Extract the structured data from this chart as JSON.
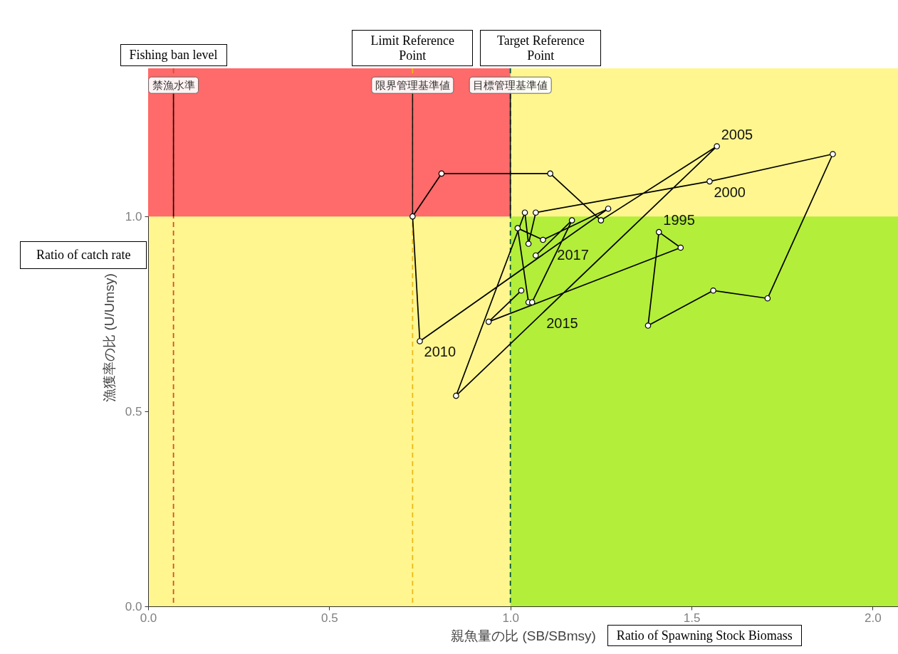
{
  "chart_data": {
    "type": "line",
    "xlabel": "親魚量の比 (SB/SBmsy)",
    "ylabel": "漁獲率の比 (U/Umsy)",
    "x": [
      1.03,
      0.94,
      1.47,
      1.41,
      1.38,
      1.56,
      1.71,
      1.89,
      1.55,
      1.07,
      1.05,
      1.04,
      0.85,
      1.57,
      1.25,
      1.11,
      0.81,
      0.73,
      0.75,
      1.27,
      1.09,
      1.02,
      1.05,
      1.06,
      1.17,
      1.07
    ],
    "series": [
      {
        "color": "#000000",
        "values": [
          0.81,
          0.73,
          0.92,
          0.96,
          0.72,
          0.81,
          0.79,
          1.16,
          1.09,
          1.01,
          0.93,
          1.01,
          0.54,
          1.18,
          0.99,
          1.11,
          1.11,
          1.0,
          0.68,
          1.02,
          0.94,
          0.97,
          0.78,
          0.78,
          0.99,
          0.9
        ]
      }
    ],
    "marker": "circle",
    "xlim": [
      0,
      2.07
    ],
    "xticks": [
      {
        "value": 0,
        "label": "0.0"
      },
      {
        "value": 0.5,
        "label": "0.5"
      },
      {
        "value": 1,
        "label": "1.0"
      },
      {
        "value": 1.5,
        "label": "1.5"
      },
      {
        "value": 2,
        "label": "2.0"
      }
    ],
    "ylim": [
      0,
      1.38
    ],
    "yticks": [
      {
        "value": 0,
        "label": "0.0"
      },
      {
        "value": 0.5,
        "label": "0.5"
      },
      {
        "value": 1,
        "label": "1.0"
      }
    ],
    "ref_lines": [
      {
        "axis": "x",
        "value": 0.07,
        "label": "禁漁水準",
        "color": "#db4c2c",
        "line_style": "dashed"
      },
      {
        "axis": "x",
        "value": 0.73,
        "label": "限界管理基準値",
        "color": "#edb918",
        "line_style": "dashed"
      },
      {
        "axis": "x",
        "value": 1,
        "label": "目標管理基準値",
        "color": "#00533e",
        "line_style": "dashed"
      }
    ],
    "bands": [
      {
        "axis": "x",
        "from": 0,
        "to": 1,
        "color": "#ff6a6a"
      },
      {
        "axis": "x",
        "from": 1,
        "to": 2.07,
        "color": "#b3ee3a"
      }
    ],
    "annotations": [
      {
        "text": "1995",
        "x": 1.41,
        "y": 0.96
      },
      {
        "text": "2000",
        "x": 1.55,
        "y": 1.09
      },
      {
        "text": "2005",
        "x": 1.57,
        "y": 1.18
      },
      {
        "text": "2010",
        "x": 0.75,
        "y": 0.68
      },
      {
        "text": "2015",
        "x": 1.06,
        "y": 0.78
      },
      {
        "text": "2017",
        "x": 1.07,
        "y": 0.9
      },
      "Fishing ban level",
      "Limit Reference Point",
      "Target Reference Point",
      "Ratio of catch rate",
      "Ratio of Spawning Stock Biomass"
    ]
  }
}
